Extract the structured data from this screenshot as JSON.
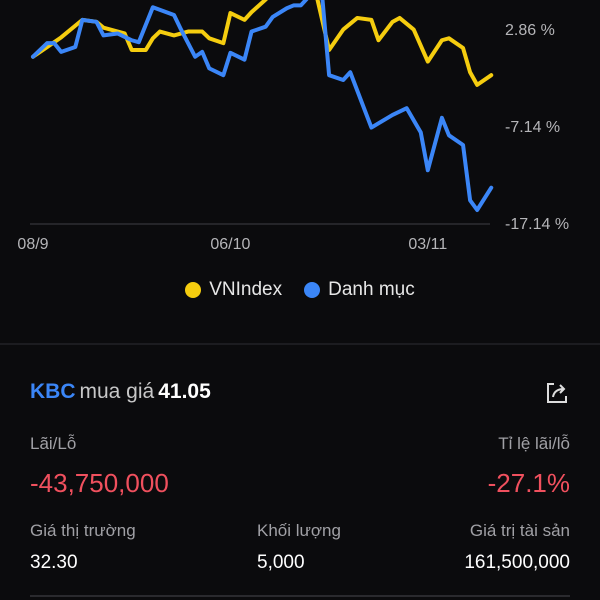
{
  "colors": {
    "vnindex": "#f5cd0f",
    "portfolio": "#3b86f7",
    "loss": "#f0505e",
    "accent": "#3b86f7"
  },
  "chart_data": {
    "type": "line",
    "y_ticks": [
      "2.86 %",
      "-7.14 %",
      "-17.14 %"
    ],
    "y_tick_values": [
      2.86,
      -7.14,
      -17.14
    ],
    "x_ticks": [
      "08/9",
      "06/10",
      "03/11"
    ],
    "legend_position": "bottom",
    "series": [
      {
        "name": "VNIndex",
        "color": "#f5cd0f",
        "points": [
          [
            "08/9",
            0.0
          ],
          [
            "10/9",
            1.0
          ],
          [
            "12/9",
            2.0
          ],
          [
            "15/9",
            3.8
          ],
          [
            "17/9",
            3.6
          ],
          [
            "18/9",
            3.0
          ],
          [
            "21/9",
            2.4
          ],
          [
            "22/9",
            0.7
          ],
          [
            "24/9",
            0.7
          ],
          [
            "25/9",
            1.9
          ],
          [
            "26/9",
            2.6
          ],
          [
            "28/9",
            2.2
          ],
          [
            "30/9",
            2.6
          ],
          [
            "02/10",
            2.6
          ],
          [
            "03/10",
            1.9
          ],
          [
            "05/10",
            1.4
          ],
          [
            "06/10",
            4.5
          ],
          [
            "08/10",
            3.8
          ],
          [
            "09/10",
            4.6
          ],
          [
            "11/10",
            5.9
          ],
          [
            "13/10",
            7.5
          ],
          [
            "16/10",
            8.0
          ],
          [
            "18/10",
            7.0
          ],
          [
            "20/10",
            0.7
          ],
          [
            "22/10",
            2.8
          ],
          [
            "24/10",
            4.0
          ],
          [
            "26/10",
            3.8
          ],
          [
            "27/10",
            1.7
          ],
          [
            "29/10",
            3.6
          ],
          [
            "30/10",
            4.0
          ],
          [
            "01/11",
            2.8
          ],
          [
            "03/11",
            -0.5
          ],
          [
            "05/11",
            1.7
          ],
          [
            "06/11",
            1.9
          ],
          [
            "08/11",
            0.9
          ],
          [
            "09/11",
            -1.6
          ],
          [
            "10/11",
            -2.9
          ],
          [
            "12/11",
            -1.9
          ]
        ]
      },
      {
        "name": "Danh mục",
        "color": "#3b86f7",
        "points": [
          [
            "08/9",
            0.0
          ],
          [
            "10/9",
            1.4
          ],
          [
            "11/9",
            1.4
          ],
          [
            "12/9",
            0.5
          ],
          [
            "14/9",
            1.0
          ],
          [
            "15/9",
            3.8
          ],
          [
            "17/9",
            3.6
          ],
          [
            "18/9",
            2.2
          ],
          [
            "20/9",
            2.4
          ],
          [
            "22/9",
            1.7
          ],
          [
            "23/9",
            1.5
          ],
          [
            "25/9",
            5.1
          ],
          [
            "28/9",
            4.3
          ],
          [
            "29/9",
            2.8
          ],
          [
            "01/10",
            0.0
          ],
          [
            "02/10",
            0.5
          ],
          [
            "03/10",
            -1.2
          ],
          [
            "05/10",
            -1.9
          ],
          [
            "06/10",
            0.4
          ],
          [
            "08/10",
            -0.3
          ],
          [
            "09/10",
            2.6
          ],
          [
            "11/10",
            3.1
          ],
          [
            "12/10",
            4.1
          ],
          [
            "14/10",
            5.0
          ],
          [
            "15/10",
            5.3
          ],
          [
            "16/10",
            5.3
          ],
          [
            "18/10",
            6.9
          ],
          [
            "19/10",
            6.4
          ],
          [
            "20/10",
            -1.9
          ],
          [
            "22/10",
            -2.4
          ],
          [
            "23/10",
            -1.6
          ],
          [
            "26/10",
            -7.3
          ],
          [
            "29/10",
            -6.0
          ],
          [
            "31/10",
            -5.3
          ],
          [
            "02/11",
            -7.8
          ],
          [
            "03/11",
            -11.7
          ],
          [
            "05/11",
            -6.3
          ],
          [
            "06/11",
            -8.1
          ],
          [
            "08/11",
            -9.1
          ],
          [
            "09/11",
            -14.8
          ],
          [
            "10/11",
            -15.8
          ],
          [
            "12/11",
            -13.5
          ]
        ]
      }
    ]
  },
  "legend": {
    "vnindex": "VNIndex",
    "portfolio": "Danh mục"
  },
  "position": {
    "symbol": "KBC",
    "buy_text": "mua giá",
    "buy_price": "41.05",
    "pnl_label": "Lãi/Lỗ",
    "pnl_value": "-43,750,000",
    "pnl_pct_label": "Tỉ lệ lãi/lỗ",
    "pnl_pct_value": "-27.1%",
    "market_price_label": "Giá thị trường",
    "market_price": "32.30",
    "volume_label": "Khối lượng",
    "volume": "5,000",
    "asset_value_label": "Giá trị tài sản",
    "asset_value": "161,500,000",
    "share_icon": "share-icon"
  }
}
